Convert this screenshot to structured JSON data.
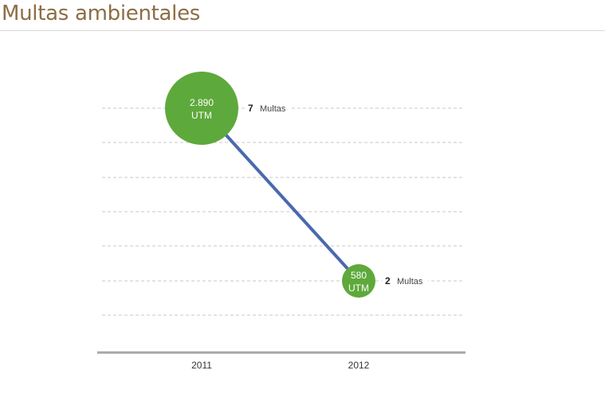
{
  "title": "Multas ambientales",
  "chart_data": {
    "type": "line",
    "categories": [
      "2011",
      "2012"
    ],
    "series": [
      {
        "values": [
          2890,
          580
        ],
        "value_labels": [
          "2.890",
          "580"
        ],
        "unit": "UTM",
        "counts": [
          7,
          2
        ],
        "count_unit": "Multas"
      }
    ],
    "grid": true,
    "colors": {
      "line": "#4a69ad",
      "bubble": "#5ea93c",
      "axis": "#a6a6a6",
      "title": "#8c6d45"
    }
  }
}
